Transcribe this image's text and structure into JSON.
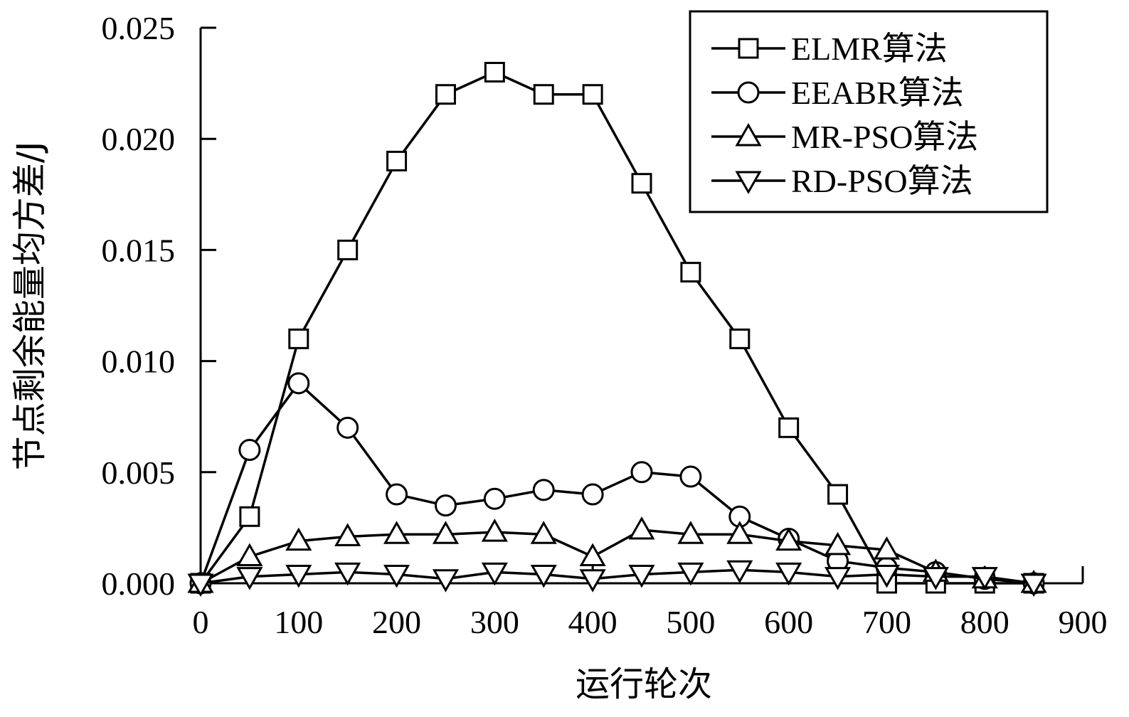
{
  "chart_data": {
    "type": "line",
    "title": "",
    "xlabel": "运行轮次",
    "ylabel": "节点剩余能量均方差/J",
    "xlim": [
      0,
      900
    ],
    "ylim": [
      0,
      0.025
    ],
    "xticks": [
      "0",
      "100",
      "200",
      "300",
      "400",
      "500",
      "600",
      "700",
      "800",
      "900"
    ],
    "yticks": [
      "0.000",
      "0.005",
      "0.010",
      "0.015",
      "0.020",
      "0.025"
    ],
    "legend_position": "top-right",
    "series": [
      {
        "name": "ELMR算法",
        "marker": "square",
        "x": [
          0,
          50,
          100,
          150,
          200,
          250,
          300,
          350,
          400,
          450,
          500,
          550,
          600,
          650,
          700,
          750,
          800,
          850
        ],
        "values": [
          0.0,
          0.003,
          0.011,
          0.015,
          0.019,
          0.022,
          0.023,
          0.022,
          0.022,
          0.018,
          0.014,
          0.011,
          0.007,
          0.004,
          0.0,
          0.0,
          0.0,
          0.0
        ]
      },
      {
        "name": "EEABR算法",
        "marker": "circle",
        "x": [
          0,
          50,
          100,
          150,
          200,
          250,
          300,
          350,
          400,
          450,
          500,
          550,
          600,
          650,
          700,
          750,
          800,
          850
        ],
        "values": [
          0.0,
          0.006,
          0.009,
          0.007,
          0.004,
          0.0035,
          0.0038,
          0.0042,
          0.004,
          0.005,
          0.0048,
          0.003,
          0.002,
          0.001,
          0.0007,
          0.0005,
          0.0002,
          0.0
        ]
      },
      {
        "name": "MR-PSO算法",
        "marker": "triangle-up",
        "x": [
          0,
          50,
          100,
          150,
          200,
          250,
          300,
          350,
          400,
          450,
          500,
          550,
          600,
          650,
          700,
          750,
          800,
          850
        ],
        "values": [
          0.0,
          0.0012,
          0.0019,
          0.0021,
          0.0022,
          0.0022,
          0.0023,
          0.0022,
          0.0012,
          0.0024,
          0.0022,
          0.0022,
          0.0019,
          0.0017,
          0.0015,
          0.0005,
          0.0002,
          0.0
        ]
      },
      {
        "name": "RD-PSO算法",
        "marker": "triangle-down",
        "x": [
          0,
          50,
          100,
          150,
          200,
          250,
          300,
          350,
          400,
          450,
          500,
          550,
          600,
          650,
          700,
          750,
          800,
          850
        ],
        "values": [
          0.0,
          0.0003,
          0.0004,
          0.0005,
          0.0004,
          0.0002,
          0.0005,
          0.0004,
          0.0002,
          0.0004,
          0.0005,
          0.0006,
          0.0005,
          0.0003,
          0.0004,
          0.0003,
          0.0003,
          0.0
        ]
      }
    ]
  }
}
